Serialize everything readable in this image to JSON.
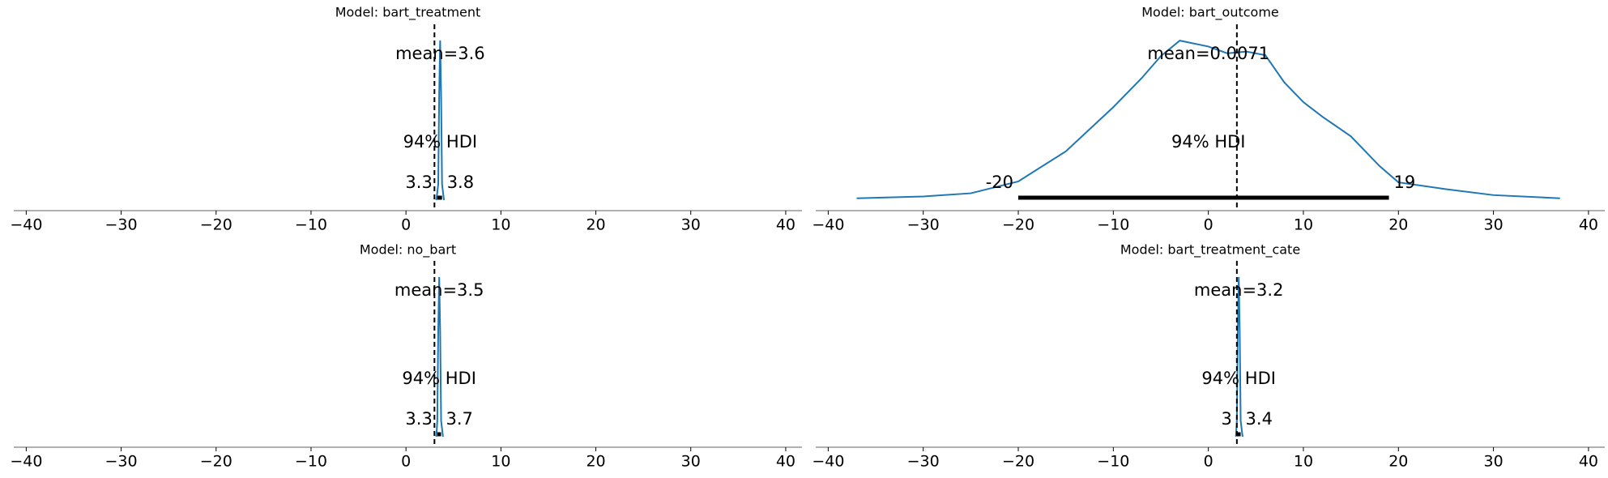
{
  "chart_data": [
    {
      "type": "density",
      "title": "Model: bart_treatment",
      "x": [
        3.2,
        3.4,
        3.5,
        3.6,
        3.7,
        3.8,
        4.0
      ],
      "values": [
        0,
        0.3,
        2,
        3,
        2,
        0.3,
        0
      ],
      "color": "#1f77b4",
      "mean": {
        "value": 3.6,
        "label": "mean=3.6"
      },
      "hdi_label": "94% HDI",
      "hdi": [
        3.3,
        3.8
      ],
      "ref_line": 3,
      "xlim": [
        -40.8,
        41.2
      ],
      "ylim": [
        0,
        3.15
      ],
      "xticks": [
        {
          "value": -40,
          "label": "−40"
        },
        {
          "value": -30,
          "label": "−30"
        },
        {
          "value": -20,
          "label": "−20"
        },
        {
          "value": -10,
          "label": "−10"
        },
        0,
        10,
        20,
        30,
        40
      ]
    },
    {
      "type": "density",
      "title": "Model: bart_outcome",
      "x": [
        -37,
        -30,
        -25,
        -20,
        -15,
        -10,
        -7,
        -5,
        -3,
        0,
        2,
        4,
        6,
        8,
        10,
        12,
        15,
        18,
        20,
        25,
        30,
        37
      ],
      "values": [
        0.0004,
        0.0008,
        0.0015,
        0.0041,
        0.0107,
        0.0204,
        0.0268,
        0.0316,
        0.035,
        0.0337,
        0.0322,
        0.0326,
        0.0318,
        0.0258,
        0.0215,
        0.0183,
        0.014,
        0.0075,
        0.0039,
        0.0024,
        0.0011,
        0.0004
      ],
      "color": "#1f77b4",
      "mean": {
        "value": 0.0071,
        "label": "mean=0.0071"
      },
      "hdi_label": "94% HDI",
      "hdi": [
        -20,
        19
      ],
      "ref_line": 3,
      "xlim": [
        -40.8,
        41.2
      ],
      "ylim": [
        0,
        0.0368
      ],
      "xticks": [
        {
          "value": -40,
          "label": "−40"
        },
        {
          "value": -30,
          "label": "−30"
        },
        {
          "value": -20,
          "label": "−20"
        },
        {
          "value": -10,
          "label": "−10"
        },
        0,
        10,
        20,
        30,
        40
      ]
    },
    {
      "type": "density",
      "title": "Model: no_bart",
      "x": [
        3.2,
        3.3,
        3.4,
        3.5,
        3.6,
        3.7,
        3.9
      ],
      "values": [
        0,
        0.3,
        2,
        3,
        2,
        0.3,
        0
      ],
      "color": "#1f77b4",
      "mean": {
        "value": 3.5,
        "label": "mean=3.5"
      },
      "hdi_label": "94% HDI",
      "hdi": [
        3.3,
        3.7
      ],
      "ref_line": 3,
      "xlim": [
        -40.8,
        41.2
      ],
      "ylim": [
        0,
        3.15
      ],
      "xticks": [
        {
          "value": -40,
          "label": "−40"
        },
        {
          "value": -30,
          "label": "−30"
        },
        {
          "value": -20,
          "label": "−20"
        },
        {
          "value": -10,
          "label": "−10"
        },
        0,
        10,
        20,
        30,
        40
      ]
    },
    {
      "type": "density",
      "title": "Model: bart_treatment_cate",
      "x": [
        2.9,
        3.0,
        3.1,
        3.2,
        3.3,
        3.4,
        3.6
      ],
      "values": [
        0,
        0.3,
        2,
        3,
        2,
        0.3,
        0
      ],
      "color": "#1f77b4",
      "mean": {
        "value": 3.2,
        "label": "mean=3.2"
      },
      "hdi_label": "94% HDI",
      "hdi": [
        3,
        3.4
      ],
      "ref_line": 3,
      "xlim": [
        -40.8,
        41.2
      ],
      "ylim": [
        0,
        3.15
      ],
      "xticks": [
        {
          "value": -40,
          "label": "−40"
        },
        {
          "value": -30,
          "label": "−30"
        },
        {
          "value": -20,
          "label": "−20"
        },
        {
          "value": -10,
          "label": "−10"
        },
        0,
        10,
        20,
        30,
        40
      ]
    }
  ]
}
